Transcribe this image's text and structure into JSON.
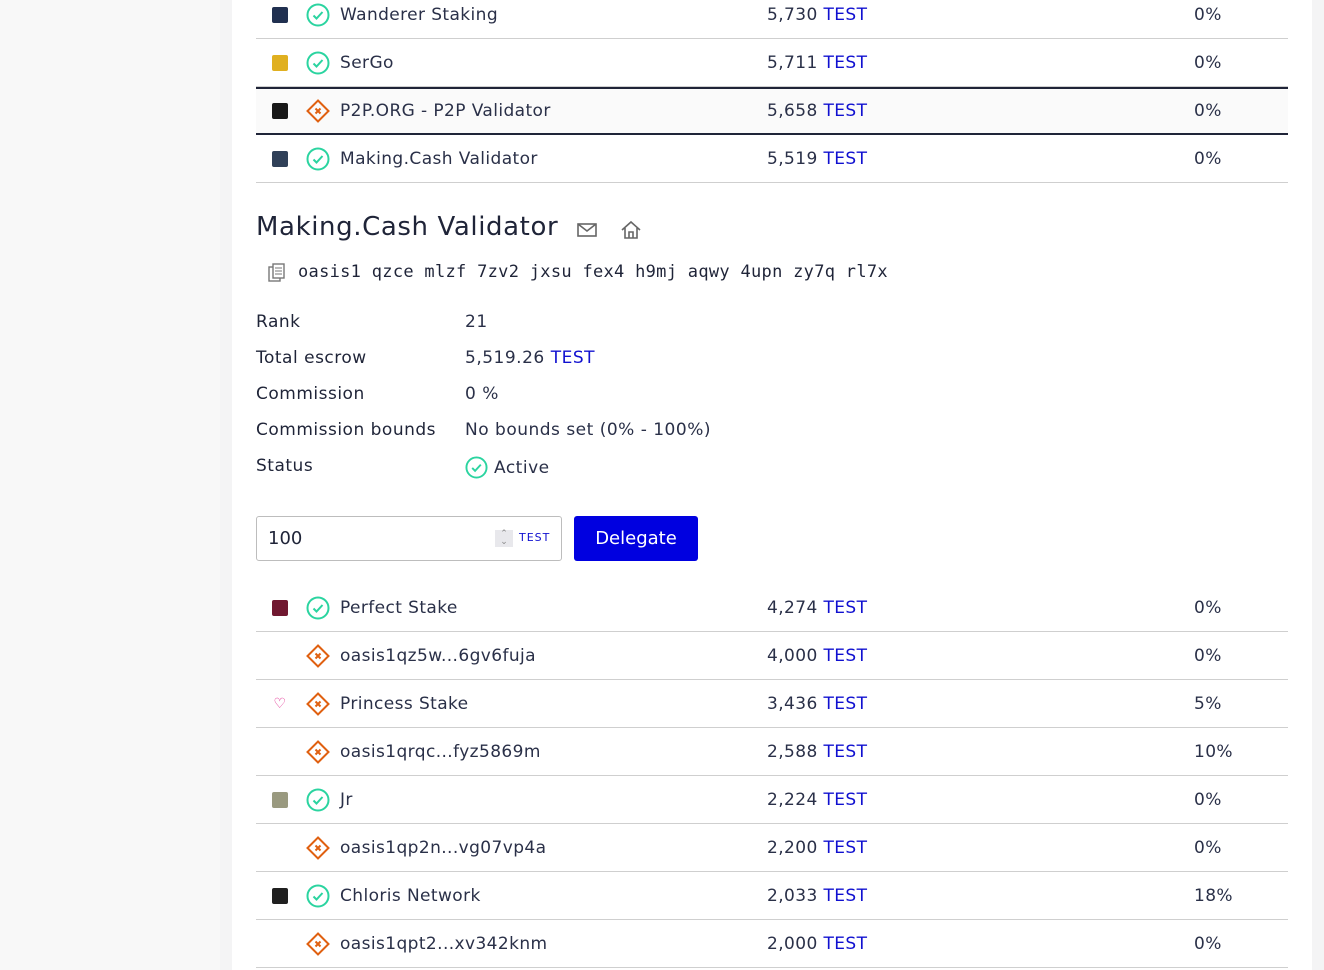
{
  "currency": "TEST",
  "colors": {
    "accent": "#0000e0",
    "active": "#2bd4a0",
    "inactive": "#e06010"
  },
  "top_rows": [
    {
      "avatar": "#203050",
      "status": "active",
      "name": "Wanderer Staking",
      "amount": "5,730",
      "commission": "0%"
    },
    {
      "avatar": "#e0b020",
      "status": "active",
      "name": "SerGo",
      "amount": "5,711",
      "commission": "0%"
    },
    {
      "avatar": "#181818",
      "status": "inactive",
      "name": "P2P.ORG - P2P Validator",
      "amount": "5,658",
      "commission": "0%",
      "selected": true
    },
    {
      "avatar": "#304058",
      "status": "active",
      "name": "Making.Cash Validator",
      "amount": "5,519",
      "commission": "0%"
    }
  ],
  "details": {
    "title": "Making.Cash Validator",
    "address": "oasis1 qzce mlzf 7zv2 jxsu fex4 h9mj aqwy 4upn zy7q rl7x",
    "fields": [
      {
        "label": "Rank",
        "value": "21"
      },
      {
        "label": "Total escrow",
        "value": "5,519.26",
        "unit": "TEST"
      },
      {
        "label": "Commission",
        "value": "0 %"
      },
      {
        "label": "Commission bounds",
        "value": "No bounds set (0% - 100%)"
      },
      {
        "label": "Status",
        "value": "Active"
      }
    ],
    "amount_input": "100",
    "unit": "TEST",
    "delegate_label": "Delegate"
  },
  "bottom_rows": [
    {
      "avatar": "#701830",
      "status": "active",
      "name": "Perfect Stake",
      "amount": "4,274",
      "commission": "0%"
    },
    {
      "avatar": "",
      "status": "inactive",
      "name": "oasis1qz5w...6gv6fuja",
      "amount": "4,000",
      "commission": "0%"
    },
    {
      "avatar": "heart",
      "status": "inactive",
      "name": "Princess Stake",
      "amount": "3,436",
      "commission": "5%"
    },
    {
      "avatar": "",
      "status": "inactive",
      "name": "oasis1qrqc...fyz5869m",
      "amount": "2,588",
      "commission": "10%"
    },
    {
      "avatar": "#9a9a80",
      "status": "active",
      "name": "Jr",
      "amount": "2,224",
      "commission": "0%"
    },
    {
      "avatar": "",
      "status": "inactive",
      "name": "oasis1qp2n...vg07vp4a",
      "amount": "2,200",
      "commission": "0%"
    },
    {
      "avatar": "#202020",
      "status": "active",
      "name": "Chloris Network",
      "amount": "2,033",
      "commission": "18%"
    },
    {
      "avatar": "",
      "status": "inactive",
      "name": "oasis1qpt2...xv342knm",
      "amount": "2,000",
      "commission": "0%"
    }
  ]
}
